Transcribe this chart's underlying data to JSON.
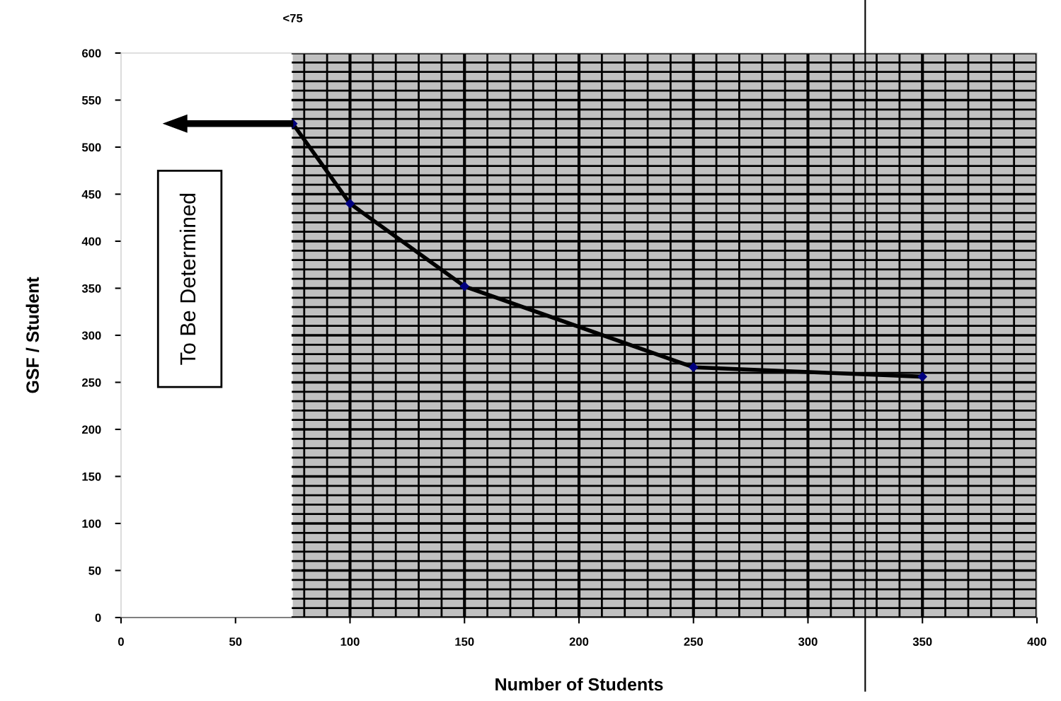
{
  "chart_data": {
    "type": "line",
    "xlabel": "Number of Students",
    "ylabel": "GSF / Student",
    "x": [
      75,
      100,
      150,
      250,
      350
    ],
    "series": [
      {
        "color": "#000000",
        "values": [
          525,
          440,
          352,
          266,
          256
        ]
      }
    ],
    "marker": "diamond",
    "line_style": "solid",
    "xlim": [
      0,
      400
    ],
    "xticks": [
      0,
      50,
      100,
      150,
      200,
      250,
      300,
      350,
      400
    ],
    "ylim": [
      0,
      600
    ],
    "yticks": [
      0,
      50,
      100,
      150,
      200,
      250,
      300,
      350,
      400,
      450,
      500,
      550,
      600
    ],
    "grid": true,
    "legend": false,
    "bands": [
      {
        "axis": "x",
        "from": 75,
        "to": 400,
        "color": "#c0c0c0"
      }
    ],
    "ref_lines": [
      {
        "axis": "x",
        "value": 325,
        "color": "#000000"
      }
    ],
    "annotations": [
      "<75",
      "To Be Determined"
    ]
  }
}
